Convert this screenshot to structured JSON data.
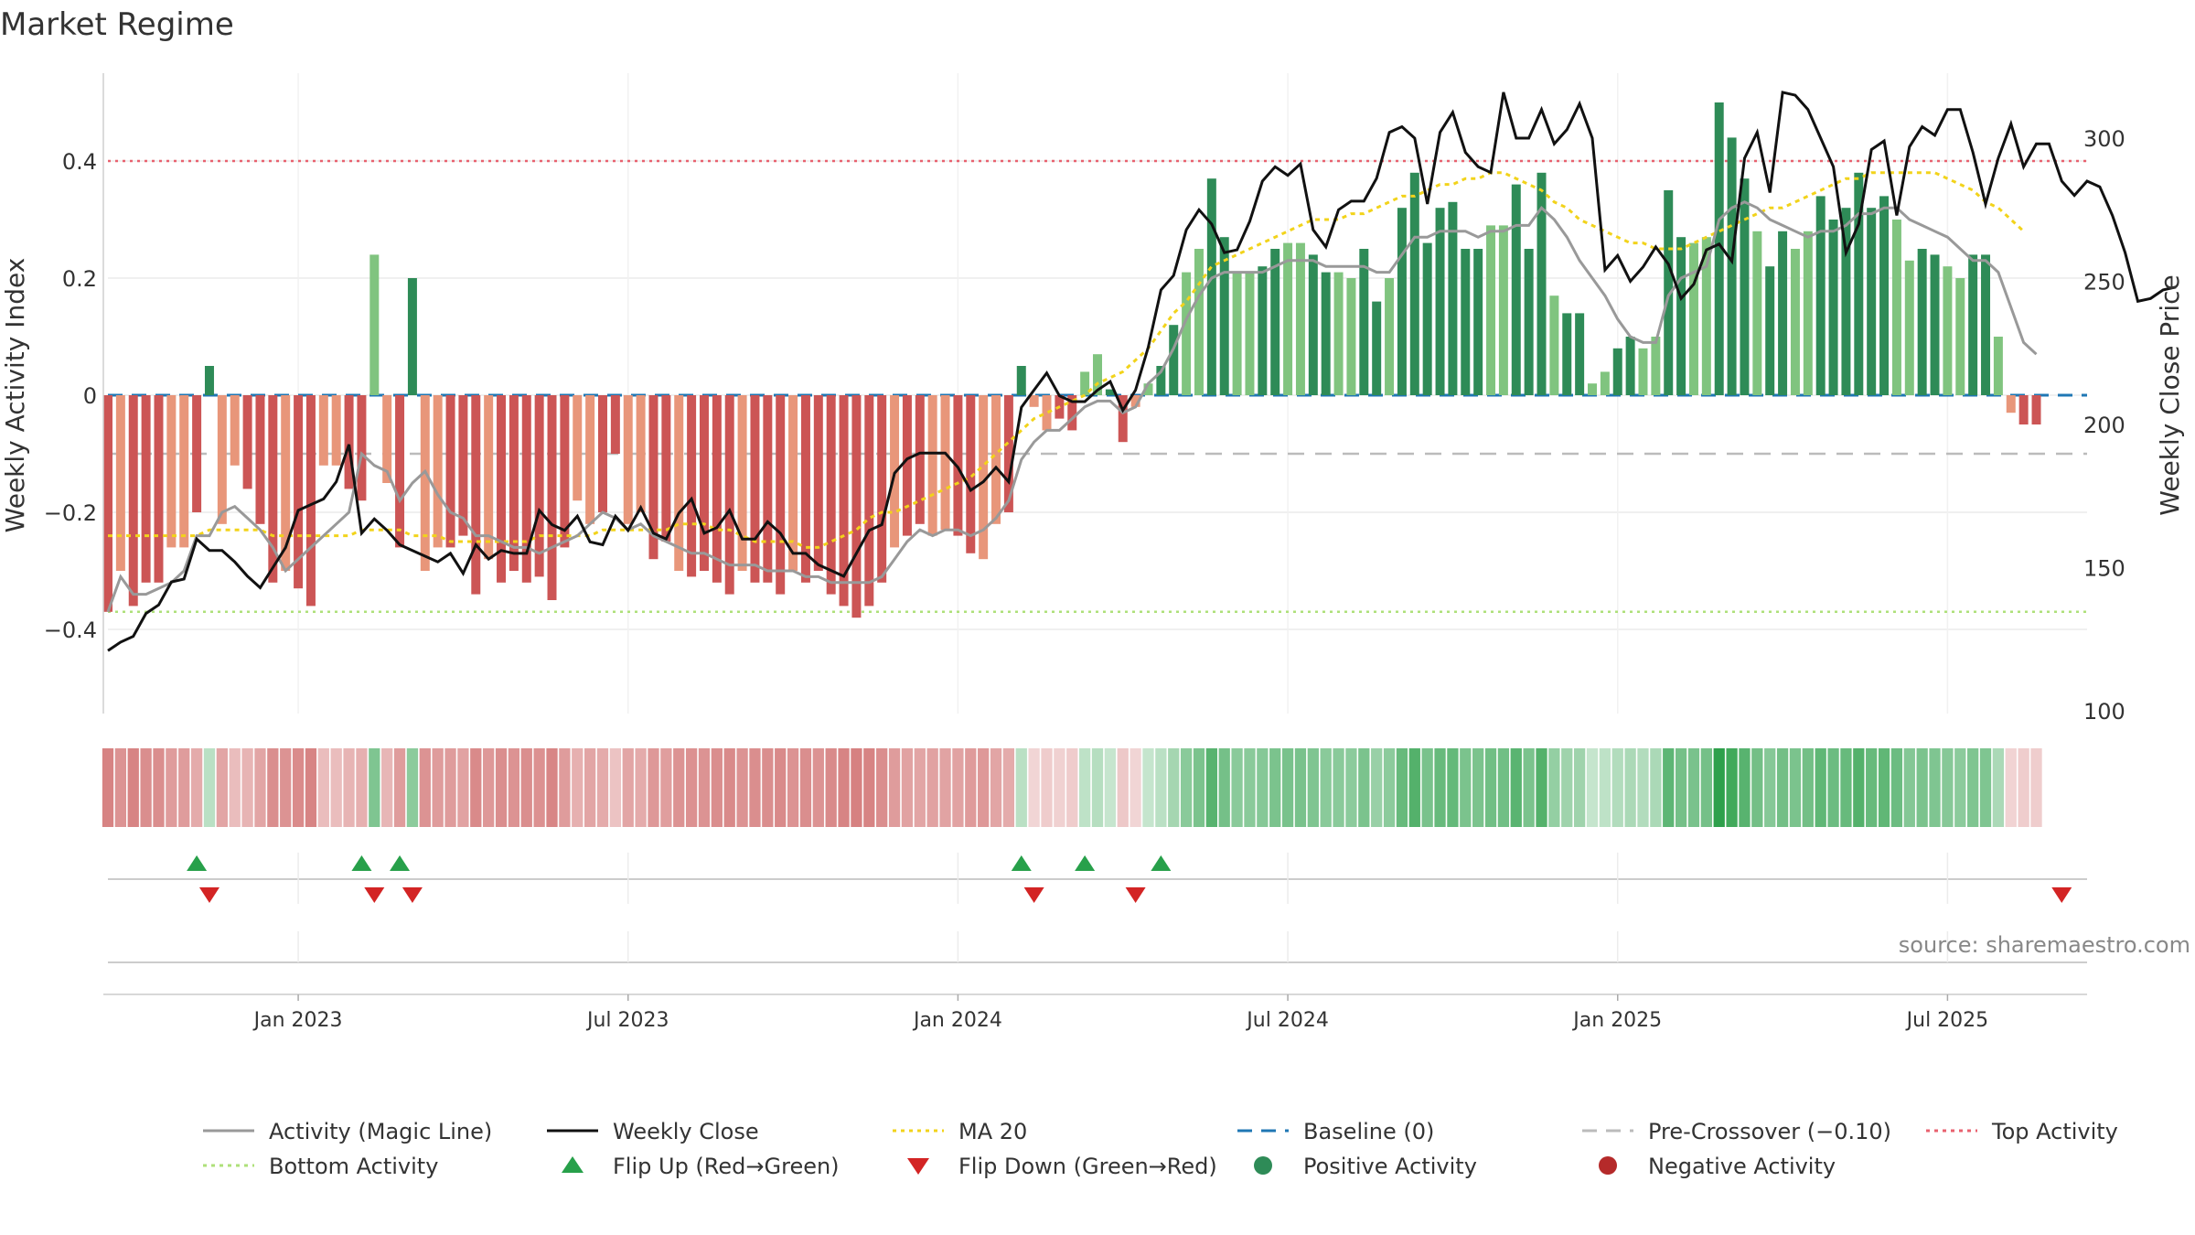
{
  "title": "Market Regime",
  "source": "source: sharemaestro.com",
  "colors": {
    "close": "#111111",
    "magic": "#999999",
    "ma20": "#f2d31b",
    "baseline": "#1f77b4",
    "pre_cross": "#bbbbbb",
    "top": "#e8626f",
    "bottom": "#aee07a",
    "flip_up": "#27a04a",
    "flip_down": "#d32424",
    "pos_dark": "#2e8b57",
    "pos_light": "#80c47f",
    "neg_dark": "#cc5555",
    "neg_light": "#e8967a"
  },
  "chart_data": {
    "type": "bar",
    "xlabel": "",
    "ylabel": "Weekly Activity Index",
    "y2label": "Weekly Close Price",
    "ylim": [
      -0.55,
      0.55
    ],
    "y2lim": [
      100,
      320
    ],
    "yticks": [
      -0.4,
      -0.2,
      0,
      0.2,
      0.4
    ],
    "ytick_labels": [
      "−0.4",
      "−0.2",
      "0",
      "0.2",
      "0.4"
    ],
    "y2ticks": [
      100,
      150,
      200,
      250,
      300
    ],
    "x_tick_labels": [
      "Jan 2023",
      "Jul 2023",
      "Jan 2024",
      "Jul 2024",
      "Jan 2025",
      "Jul 2025"
    ],
    "x_tick_weeks": [
      15,
      41,
      67,
      93,
      119,
      145
    ],
    "n_weeks": 157,
    "reference_lines": {
      "baseline": 0,
      "pre_crossover": -0.1,
      "top_activity": 0.4,
      "bottom_activity": -0.37
    },
    "grid": true,
    "legend_position": "bottom",
    "legend": [
      {
        "label": "Activity (Magic Line)",
        "kind": "line-solid",
        "color": "#999999"
      },
      {
        "label": "Weekly Close",
        "kind": "line-solid",
        "color": "#111111"
      },
      {
        "label": "MA 20",
        "kind": "line-dotted",
        "color": "#f2d31b"
      },
      {
        "label": "Baseline (0)",
        "kind": "line-dashed",
        "color": "#1f77b4"
      },
      {
        "label": "Pre-Crossover (−0.10)",
        "kind": "line-dashed",
        "color": "#bbbbbb"
      },
      {
        "label": "Top Activity",
        "kind": "line-dotted",
        "color": "#e8626f"
      },
      {
        "label": "Bottom Activity",
        "kind": "line-dotted",
        "color": "#aee07a"
      },
      {
        "label": "Flip Up (Red→Green)",
        "kind": "tri-up",
        "color": "#27a04a"
      },
      {
        "label": "Flip Down (Green→Red)",
        "kind": "tri-down",
        "color": "#d32424"
      },
      {
        "label": "Positive Activity",
        "kind": "dot",
        "color": "#2e8b57"
      },
      {
        "label": "Negative Activity",
        "kind": "dot",
        "color": "#b52a2a"
      }
    ],
    "flip_up_weeks": [
      7,
      20,
      23,
      72,
      77,
      83
    ],
    "flip_down_weeks": [
      8,
      21,
      24,
      73,
      81,
      154
    ],
    "activity": [
      -0.37,
      -0.3,
      -0.36,
      -0.32,
      -0.32,
      -0.26,
      -0.26,
      -0.2,
      0.05,
      -0.22,
      -0.12,
      -0.16,
      -0.22,
      -0.32,
      -0.3,
      -0.33,
      -0.36,
      -0.12,
      -0.12,
      -0.16,
      -0.18,
      0.24,
      -0.15,
      -0.26,
      0.2,
      -0.3,
      -0.26,
      -0.26,
      -0.24,
      -0.34,
      -0.28,
      -0.32,
      -0.3,
      -0.32,
      -0.31,
      -0.35,
      -0.26,
      -0.18,
      -0.22,
      -0.2,
      -0.1,
      -0.22,
      -0.2,
      -0.28,
      -0.25,
      -0.3,
      -0.31,
      -0.3,
      -0.32,
      -0.34,
      -0.3,
      -0.32,
      -0.32,
      -0.34,
      -0.3,
      -0.32,
      -0.3,
      -0.34,
      -0.36,
      -0.38,
      -0.36,
      -0.32,
      -0.26,
      -0.24,
      -0.22,
      -0.24,
      -0.23,
      -0.24,
      -0.27,
      -0.28,
      -0.22,
      -0.2,
      0.05,
      -0.02,
      -0.06,
      -0.04,
      -0.06,
      0.04,
      0.07,
      0.01,
      -0.08,
      -0.02,
      0.02,
      0.05,
      0.12,
      0.21,
      0.25,
      0.37,
      0.27,
      0.21,
      0.21,
      0.22,
      0.25,
      0.26,
      0.26,
      0.24,
      0.21,
      0.21,
      0.2,
      0.25,
      0.16,
      0.2,
      0.32,
      0.38,
      0.26,
      0.32,
      0.33,
      0.25,
      0.25,
      0.29,
      0.29,
      0.36,
      0.25,
      0.38,
      0.17,
      0.14,
      0.14,
      0.02,
      0.04,
      0.08,
      0.1,
      0.08,
      0.1,
      0.35,
      0.27,
      0.26,
      0.27,
      0.5,
      0.44,
      0.37,
      0.28,
      0.22,
      0.28,
      0.25,
      0.28,
      0.34,
      0.3,
      0.32,
      0.38,
      0.32,
      0.34,
      0.3,
      0.23,
      0.25,
      0.24,
      0.22,
      0.2,
      0.24,
      0.24,
      0.1,
      -0.03,
      -0.05,
      -0.05
    ],
    "close": [
      121,
      124,
      126,
      134,
      137,
      145,
      146,
      160,
      156,
      156,
      152,
      147,
      143,
      150,
      157,
      170,
      172,
      174,
      180,
      193,
      162,
      167,
      163,
      158,
      156,
      154,
      152,
      155,
      148,
      158,
      153,
      156,
      155,
      155,
      170,
      165,
      163,
      168,
      159,
      158,
      168,
      163,
      171,
      162,
      160,
      169,
      174,
      162,
      164,
      170,
      160,
      160,
      166,
      162,
      155,
      155,
      151,
      149,
      147,
      155,
      163,
      165,
      183,
      188,
      190,
      190,
      190,
      185,
      177,
      180,
      185,
      180,
      206,
      212,
      218,
      210,
      208,
      208,
      212,
      215,
      205,
      212,
      227,
      247,
      252,
      268,
      275,
      270,
      260,
      261,
      271,
      285,
      290,
      287,
      291,
      268,
      262,
      275,
      278,
      278,
      286,
      302,
      304,
      300,
      277,
      302,
      309,
      295,
      290,
      288,
      316,
      300,
      300,
      310,
      298,
      303,
      312,
      300,
      254,
      259,
      250,
      255,
      262,
      256,
      244,
      249,
      261,
      263,
      257,
      293,
      302,
      281,
      316,
      315,
      310,
      300,
      290,
      260,
      270,
      296,
      299,
      273,
      297,
      304,
      301,
      310,
      310,
      295,
      277,
      293,
      305,
      290,
      298,
      298,
      285,
      280,
      285,
      283,
      273,
      260,
      243,
      244,
      247,
      248
    ],
    "magic": [
      -0.37,
      -0.31,
      -0.34,
      -0.34,
      -0.33,
      -0.32,
      -0.3,
      -0.24,
      -0.24,
      -0.2,
      -0.19,
      -0.21,
      -0.23,
      -0.26,
      -0.3,
      -0.28,
      -0.26,
      -0.24,
      -0.22,
      -0.2,
      -0.1,
      -0.12,
      -0.13,
      -0.18,
      -0.15,
      -0.13,
      -0.17,
      -0.2,
      -0.21,
      -0.24,
      -0.24,
      -0.25,
      -0.26,
      -0.26,
      -0.27,
      -0.26,
      -0.25,
      -0.24,
      -0.22,
      -0.2,
      -0.21,
      -0.23,
      -0.22,
      -0.24,
      -0.25,
      -0.26,
      -0.27,
      -0.27,
      -0.28,
      -0.29,
      -0.29,
      -0.29,
      -0.3,
      -0.3,
      -0.3,
      -0.31,
      -0.31,
      -0.32,
      -0.32,
      -0.32,
      -0.32,
      -0.31,
      -0.28,
      -0.25,
      -0.23,
      -0.24,
      -0.23,
      -0.23,
      -0.24,
      -0.23,
      -0.21,
      -0.18,
      -0.11,
      -0.08,
      -0.06,
      -0.06,
      -0.04,
      -0.02,
      -0.01,
      -0.01,
      -0.03,
      -0.02,
      0.02,
      0.04,
      0.08,
      0.13,
      0.17,
      0.2,
      0.21,
      0.21,
      0.21,
      0.21,
      0.22,
      0.23,
      0.23,
      0.23,
      0.22,
      0.22,
      0.22,
      0.22,
      0.21,
      0.21,
      0.24,
      0.27,
      0.27,
      0.28,
      0.28,
      0.28,
      0.27,
      0.28,
      0.28,
      0.29,
      0.29,
      0.32,
      0.3,
      0.27,
      0.23,
      0.2,
      0.17,
      0.13,
      0.1,
      0.09,
      0.09,
      0.17,
      0.2,
      0.21,
      0.22,
      0.3,
      0.32,
      0.33,
      0.32,
      0.3,
      0.29,
      0.28,
      0.27,
      0.28,
      0.28,
      0.29,
      0.31,
      0.31,
      0.32,
      0.32,
      0.3,
      0.29,
      0.28,
      0.27,
      0.25,
      0.23,
      0.23,
      0.21,
      0.15,
      0.09,
      0.07
    ],
    "ma20": [
      -0.24,
      -0.24,
      -0.24,
      -0.24,
      -0.24,
      -0.24,
      -0.24,
      -0.24,
      -0.23,
      -0.23,
      -0.23,
      -0.23,
      -0.23,
      -0.24,
      -0.24,
      -0.24,
      -0.24,
      -0.24,
      -0.24,
      -0.24,
      -0.23,
      -0.23,
      -0.23,
      -0.23,
      -0.24,
      -0.24,
      -0.24,
      -0.25,
      -0.25,
      -0.25,
      -0.25,
      -0.25,
      -0.25,
      -0.25,
      -0.24,
      -0.24,
      -0.24,
      -0.24,
      -0.24,
      -0.23,
      -0.23,
      -0.23,
      -0.23,
      -0.23,
      -0.23,
      -0.22,
      -0.22,
      -0.22,
      -0.23,
      -0.23,
      -0.24,
      -0.25,
      -0.25,
      -0.25,
      -0.25,
      -0.26,
      -0.26,
      -0.25,
      -0.24,
      -0.23,
      -0.21,
      -0.2,
      -0.2,
      -0.19,
      -0.18,
      -0.17,
      -0.16,
      -0.15,
      -0.14,
      -0.12,
      -0.1,
      -0.08,
      -0.06,
      -0.04,
      -0.03,
      -0.02,
      -0.01,
      0,
      0.02,
      0.03,
      0.04,
      0.06,
      0.08,
      0.11,
      0.14,
      0.16,
      0.19,
      0.22,
      0.23,
      0.24,
      0.25,
      0.26,
      0.27,
      0.28,
      0.29,
      0.3,
      0.3,
      0.3,
      0.31,
      0.31,
      0.32,
      0.33,
      0.34,
      0.34,
      0.35,
      0.36,
      0.36,
      0.37,
      0.37,
      0.38,
      0.38,
      0.37,
      0.36,
      0.35,
      0.33,
      0.32,
      0.3,
      0.29,
      0.28,
      0.27,
      0.26,
      0.26,
      0.25,
      0.25,
      0.25,
      0.26,
      0.27,
      0.28,
      0.29,
      0.3,
      0.31,
      0.32,
      0.32,
      0.33,
      0.34,
      0.35,
      0.36,
      0.37,
      0.37,
      0.38,
      0.38,
      0.38,
      0.38,
      0.38,
      0.38,
      0.37,
      0.36,
      0.35,
      0.33,
      0.32,
      0.3,
      0.28
    ]
  }
}
